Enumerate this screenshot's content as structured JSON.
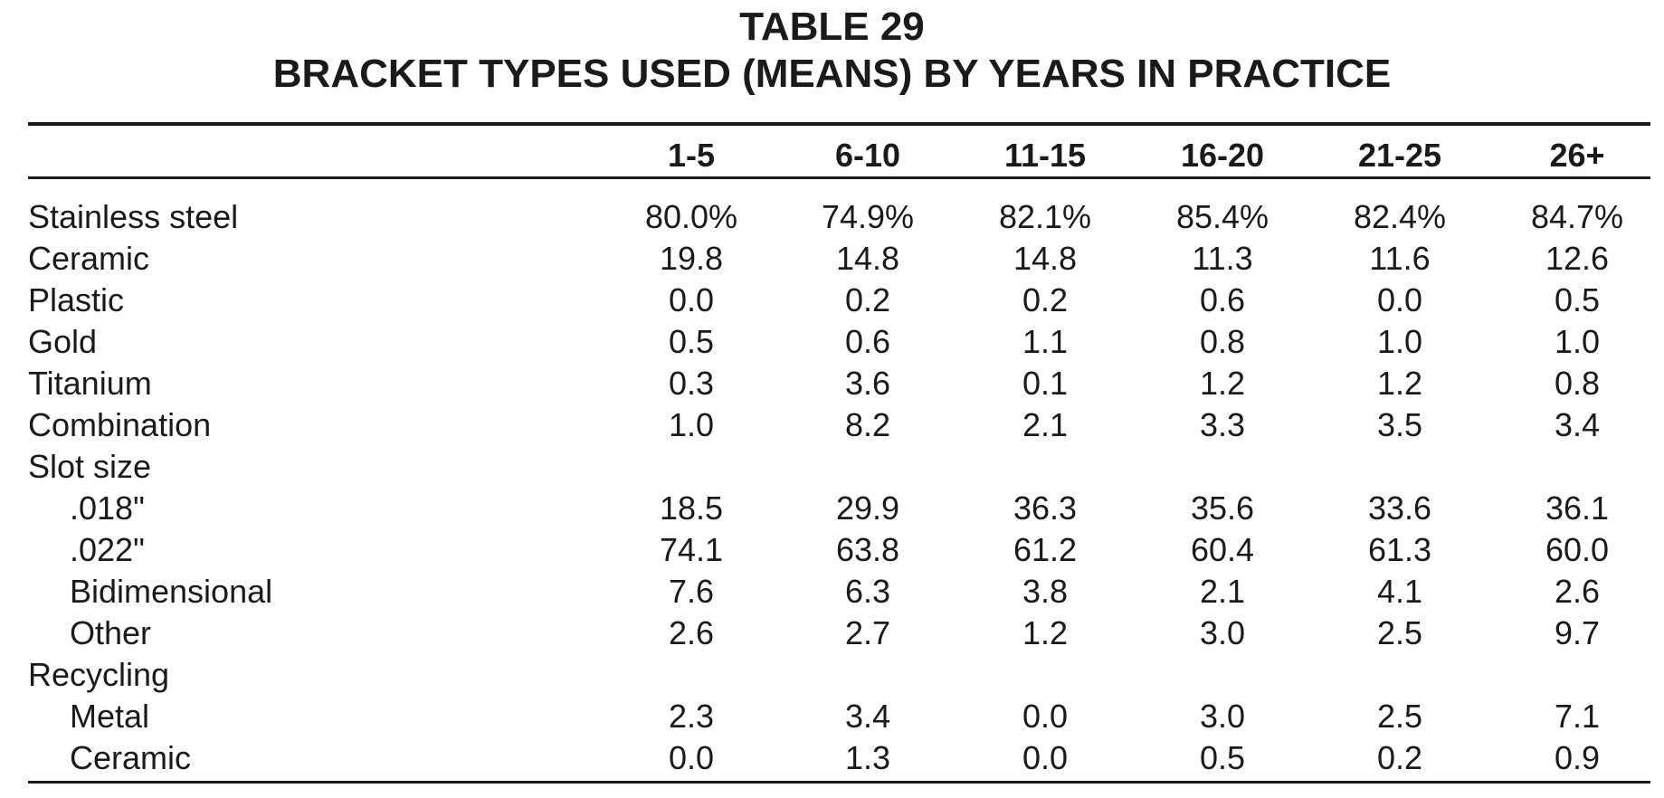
{
  "title": {
    "line1": "TABLE 29",
    "line2": "BRACKET TYPES USED (MEANS) BY YEARS IN PRACTICE"
  },
  "columns": [
    "1-5",
    "6-10",
    "11-15",
    "16-20",
    "21-25",
    "26+"
  ],
  "rows": [
    {
      "label": "Stainless steel",
      "indent": false,
      "values": [
        "80.0%",
        "74.9%",
        "82.1%",
        "85.4%",
        "82.4%",
        "84.7%"
      ]
    },
    {
      "label": "Ceramic",
      "indent": false,
      "values": [
        "19.8",
        "14.8",
        "14.8",
        "11.3",
        "11.6",
        "12.6"
      ]
    },
    {
      "label": "Plastic",
      "indent": false,
      "values": [
        "0.0",
        "0.2",
        "0.2",
        "0.6",
        "0.0",
        "0.5"
      ]
    },
    {
      "label": "Gold",
      "indent": false,
      "values": [
        "0.5",
        "0.6",
        "1.1",
        "0.8",
        "1.0",
        "1.0"
      ]
    },
    {
      "label": "Titanium",
      "indent": false,
      "values": [
        "0.3",
        "3.6",
        "0.1",
        "1.2",
        "1.2",
        "0.8"
      ]
    },
    {
      "label": "Combination",
      "indent": false,
      "values": [
        "1.0",
        "8.2",
        "2.1",
        "3.3",
        "3.5",
        "3.4"
      ]
    },
    {
      "label": "Slot size",
      "indent": false,
      "values": [
        "",
        "",
        "",
        "",
        "",
        ""
      ]
    },
    {
      "label": ".018\"",
      "indent": true,
      "values": [
        "18.5",
        "29.9",
        "36.3",
        "35.6",
        "33.6",
        "36.1"
      ]
    },
    {
      "label": ".022\"",
      "indent": true,
      "values": [
        "74.1",
        "63.8",
        "61.2",
        "60.4",
        "61.3",
        "60.0"
      ]
    },
    {
      "label": "Bidimensional",
      "indent": true,
      "values": [
        "7.6",
        "6.3",
        "3.8",
        "2.1",
        "4.1",
        "2.6"
      ]
    },
    {
      "label": "Other",
      "indent": true,
      "values": [
        "2.6",
        "2.7",
        "1.2",
        "3.0",
        "2.5",
        "9.7"
      ]
    },
    {
      "label": "Recycling",
      "indent": false,
      "values": [
        "",
        "",
        "",
        "",
        "",
        ""
      ]
    },
    {
      "label": "Metal",
      "indent": true,
      "values": [
        "2.3",
        "3.4",
        "0.0",
        "3.0",
        "2.5",
        "7.1"
      ]
    },
    {
      "label": "Ceramic",
      "indent": true,
      "values": [
        "0.0",
        "1.3",
        "0.0",
        "0.5",
        "0.2",
        "0.9"
      ]
    }
  ]
}
